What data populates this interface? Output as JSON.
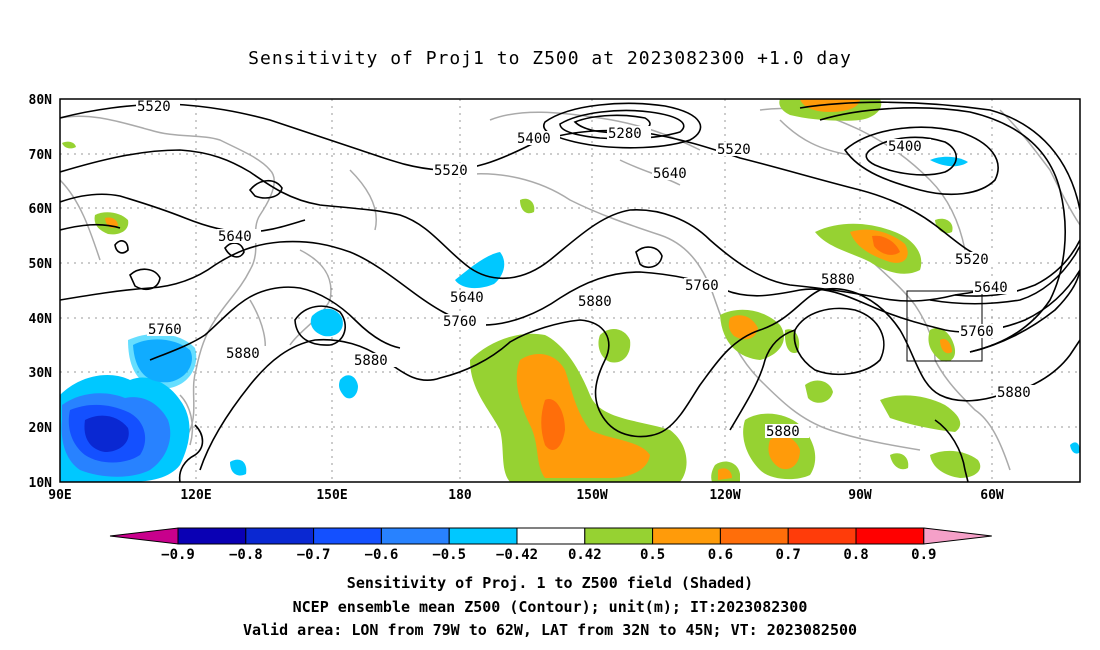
{
  "title": "Sensitivity of Proj1 to Z500 at 2023082300 +1.0 day",
  "map": {
    "lat_ticks": [
      "80N",
      "70N",
      "60N",
      "50N",
      "40N",
      "30N",
      "20N",
      "10N"
    ],
    "lon_ticks": [
      "90E",
      "120E",
      "150E",
      "180",
      "150W",
      "120W",
      "90W",
      "60W"
    ],
    "contour_levels": [
      "5520",
      "5400",
      "5280",
      "5520",
      "5640",
      "5400",
      "5520",
      "5640",
      "5640",
      "5760",
      "5880",
      "5880",
      "5760",
      "5880",
      "5520",
      "5640",
      "5760",
      "5880",
      "5880",
      "5760",
      "5880"
    ],
    "valid_box_label": "Valid area"
  },
  "colorbar": {
    "labels": [
      "-0.9",
      "-0.8",
      "-0.7",
      "-0.6",
      "-0.5",
      "-0.42",
      "0.42",
      "0.5",
      "0.6",
      "0.7",
      "0.8",
      "0.9"
    ],
    "colors": [
      "#c8008c",
      "#0a00b4",
      "#0a28d2",
      "#1450ff",
      "#2882ff",
      "#00c8ff",
      "#ffffff",
      "#96d232",
      "#ff9b0a",
      "#ff6e0a",
      "#ff3c0a",
      "#ff0000",
      "#f5a0c8"
    ]
  },
  "footer": {
    "line1": "Sensitivity of Proj. 1 to Z500 field (Shaded)",
    "line2": "NCEP ensemble mean Z500 (Contour); unit(m); IT:2023082300",
    "line3": "Valid area: LON from 79W to 62W, LAT from 32N to 45N; VT: 2023082500"
  }
}
